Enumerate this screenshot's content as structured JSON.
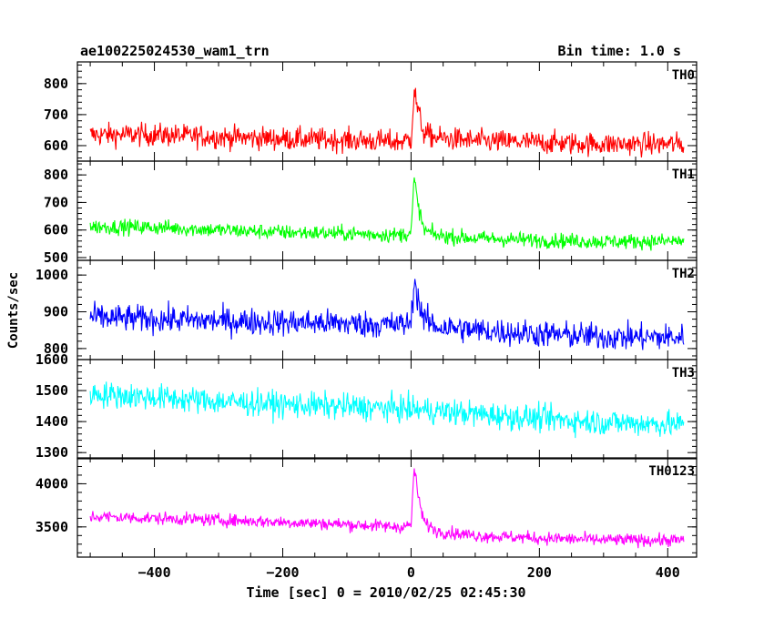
{
  "header": {
    "title": "ae100225024530_wam1_trn",
    "bin_time": "Bin time: 1.0 s"
  },
  "axes": {
    "xlabel": "Time [sec] 0 = 2010/02/25 02:45:30",
    "ylabel": "Counts/sec",
    "xlim": [
      -520,
      445
    ],
    "x_major_ticks": [
      -400,
      -200,
      0,
      200,
      400
    ],
    "x_tick_labels": [
      "−400",
      "−200",
      "0",
      "200",
      "400"
    ]
  },
  "chart_data": {
    "type": "line",
    "title": "ae100225024530_wam1_trn",
    "xlabel": "Time [sec] 0 = 2010/02/25 02:45:30",
    "ylabel": "Counts/sec",
    "bin_time_s": 1.0,
    "x_range": [
      -500,
      425
    ],
    "series": [
      {
        "name": "TH0",
        "color": "#ff0000",
        "ylim": [
          550,
          870
        ],
        "yticks": [
          600,
          700,
          800
        ],
        "profile_t": [
          -500,
          -400,
          -300,
          -200,
          -100,
          -20,
          0,
          5,
          10,
          20,
          40,
          100,
          200,
          300,
          425
        ],
        "profile_mean": [
          635,
          635,
          628,
          622,
          618,
          612,
          620,
          780,
          720,
          640,
          625,
          615,
          610,
          605,
          605
        ],
        "noise_amplitude": 48
      },
      {
        "name": "TH1",
        "color": "#00ff00",
        "ylim": [
          490,
          850
        ],
        "yticks": [
          500,
          600,
          700,
          800
        ],
        "profile_t": [
          -500,
          -400,
          -300,
          -200,
          -100,
          -20,
          0,
          5,
          10,
          20,
          40,
          100,
          200,
          300,
          425
        ],
        "profile_mean": [
          612,
          610,
          600,
          592,
          587,
          582,
          590,
          790,
          700,
          600,
          580,
          570,
          563,
          558,
          560
        ],
        "noise_amplitude": 36
      },
      {
        "name": "TH2",
        "color": "#0000ff",
        "ylim": [
          770,
          1040
        ],
        "yticks": [
          800,
          900,
          1000
        ],
        "profile_t": [
          -500,
          -400,
          -300,
          -200,
          -100,
          -20,
          0,
          5,
          10,
          20,
          40,
          100,
          200,
          300,
          425
        ],
        "profile_mean": [
          885,
          880,
          875,
          872,
          868,
          864,
          870,
          990,
          940,
          880,
          860,
          850,
          840,
          832,
          830
        ],
        "noise_amplitude": 48
      },
      {
        "name": "TH3",
        "color": "#00ffff",
        "ylim": [
          1280,
          1600
        ],
        "yticks": [
          1300,
          1400,
          1500,
          1600
        ],
        "profile_t": [
          -500,
          -400,
          -300,
          -200,
          -100,
          0,
          100,
          200,
          300,
          425
        ],
        "profile_mean": [
          1490,
          1478,
          1465,
          1455,
          1448,
          1440,
          1425,
          1410,
          1398,
          1390
        ],
        "noise_amplitude": 55
      },
      {
        "name": "TH0123",
        "color": "#ff00ff",
        "ylim": [
          3150,
          4300
        ],
        "yticks": [
          3500,
          4000
        ],
        "profile_t": [
          -500,
          -400,
          -300,
          -200,
          -100,
          -20,
          0,
          5,
          10,
          20,
          40,
          100,
          200,
          300,
          425
        ],
        "profile_mean": [
          3620,
          3600,
          3580,
          3555,
          3530,
          3500,
          3520,
          4200,
          3900,
          3560,
          3450,
          3400,
          3370,
          3350,
          3345
        ],
        "noise_amplitude": 95
      }
    ]
  }
}
